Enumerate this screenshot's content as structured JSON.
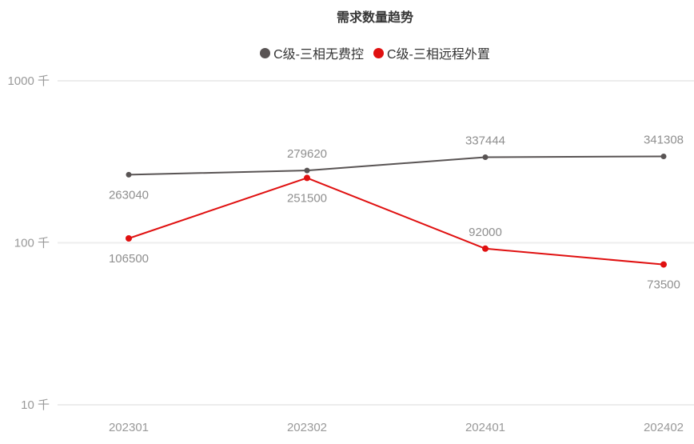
{
  "title": "需求数量趋势",
  "legend": [
    {
      "name": "C级-三相无费控",
      "color": "#595454"
    },
    {
      "name": "C级-三相远程外置",
      "color": "#e01010"
    }
  ],
  "chart_data": {
    "type": "line",
    "title": "需求数量趋势",
    "categories": [
      "202301",
      "202302",
      "202401",
      "202402"
    ],
    "series": [
      {
        "name": "C级-三相无费控",
        "color": "#595454",
        "values": [
          263040,
          279620,
          337444,
          341308
        ],
        "labels": [
          "263040",
          "279620",
          "337444",
          "341308"
        ],
        "label_position": [
          "below",
          "above",
          "above",
          "above"
        ],
        "point_radius": 3.5
      },
      {
        "name": "C级-三相远程外置",
        "color": "#e01010",
        "values": [
          106500,
          251500,
          92000,
          73500
        ],
        "labels": [
          "106500",
          "251500",
          "92000",
          "73500"
        ],
        "label_position": [
          "below",
          "below",
          "above",
          "below"
        ],
        "point_radius": 4
      }
    ],
    "xlabel": "",
    "ylabel": "",
    "y_axis": {
      "scale": "log",
      "unit": "千",
      "ticks": [
        {
          "label": "1000 千",
          "value": 1000000
        },
        {
          "label": "100 千",
          "value": 100000
        },
        {
          "label": "10 千",
          "value": 10000
        }
      ]
    },
    "ylim": [
      10000,
      1000000
    ],
    "grid": true,
    "legend_position": "top"
  },
  "colors": {
    "grid": "#ededed",
    "axis_label": "#999999",
    "data_label": "#8f8f8f",
    "title": "#363636",
    "legend_text": "#333333",
    "background": "#ffffff"
  }
}
